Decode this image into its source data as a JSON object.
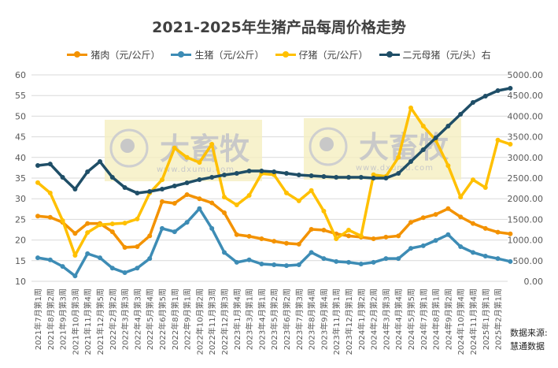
{
  "chart_data": {
    "type": "line",
    "title": "2021-2025年生猪产品每周价格走势",
    "ylim_left": [
      10,
      60
    ],
    "yticks_left": [
      "10",
      "15",
      "20",
      "25",
      "30",
      "35",
      "40",
      "45",
      "50",
      "55",
      "60"
    ],
    "ylim_right": [
      0,
      5000
    ],
    "yticks_right": [
      "0.00",
      "500.00",
      "1000.00",
      "1500.00",
      "2000.00",
      "2500.00",
      "3000.00",
      "3500.00",
      "4000.00",
      "4500.00",
      "5000.00"
    ],
    "grid": true,
    "legend_position": "top",
    "categories": [
      "2021年7月第1周",
      "2021年8月第2周",
      "2021年9月第3周",
      "2021年10月第3周",
      "2021年11月第4周",
      "2021年12月第5周",
      "2022年2月第2周",
      "2022年3月第3周",
      "2022年4月第3周",
      "2022年5月第4周",
      "2022年6月第5周",
      "2022年8月第1周",
      "2022年9月第1周",
      "2022年10月第2周",
      "2022年11月第3周",
      "2022年12月第3周",
      "2023年1月第4周",
      "2023年3月第1周",
      "2023年4月第1周",
      "2023年5月第2周",
      "2023年6月第2周",
      "2023年7月第3周",
      "2023年8月第4周",
      "2023年9月第4周",
      "2023年11月第1周",
      "2023年12月第1周",
      "2024年1月第2周",
      "2024年2月第2周",
      "2024年3月第3周",
      "2024年4月第4周",
      "2024年5月第5周",
      "2024年7月第1周",
      "2024年8月第1周",
      "2024年9月第2周",
      "2024年10月第4周",
      "2024年11月第4周",
      "2025年1月第1周",
      "2025年2月第1周",
      ""
    ],
    "series": [
      {
        "name": "猪肉（元/公斤）",
        "axis": "left",
        "color": "#F39200",
        "values": [
          25.8,
          25.5,
          24.3,
          21.6,
          24,
          24,
          22,
          18.2,
          18.4,
          21,
          29.3,
          28.9,
          31,
          30,
          29,
          26.6,
          21.3,
          20.9,
          20.3,
          19.7,
          19.2,
          19,
          22.6,
          22.4,
          21.5,
          21,
          20.7,
          20.3,
          20.7,
          21,
          24.3,
          25.4,
          26.2,
          27.6,
          25.6,
          24,
          22.8,
          21.9,
          21.5
        ]
      },
      {
        "name": "生猪（元/公斤）",
        "axis": "left",
        "color": "#3D8CB5",
        "values": [
          15.7,
          15.2,
          13.6,
          11.3,
          16.7,
          15.7,
          13.2,
          12.1,
          13.2,
          15.5,
          22.8,
          22,
          24.3,
          27.6,
          22.8,
          17,
          14.6,
          15.2,
          14.2,
          14,
          13.8,
          14,
          17,
          15.5,
          14.8,
          14.6,
          14.2,
          14.6,
          15.5,
          15.5,
          18,
          18.6,
          19.9,
          21.3,
          18.4,
          17,
          16.1,
          15.5,
          14.8
        ]
      },
      {
        "name": "仔猪（元/公斤）",
        "axis": "left",
        "color": "#FFC000",
        "values": [
          33.9,
          31.4,
          24.7,
          16.3,
          21.8,
          23.7,
          23.9,
          24.1,
          25.1,
          31.4,
          34.6,
          42.3,
          40,
          38.8,
          43.2,
          30.4,
          28.5,
          30.8,
          36.1,
          35.8,
          31.4,
          29.5,
          32,
          27,
          20.3,
          22.4,
          21,
          35.8,
          35.4,
          40,
          52,
          47.6,
          44.2,
          38,
          30.4,
          34.6,
          32.7,
          44.2,
          43.2
        ]
      },
      {
        "name": "二元母猪（元/头）右",
        "axis": "right",
        "color": "#1F4E67",
        "values": [
          2805,
          2840,
          2519,
          2233,
          2653,
          2900,
          2519,
          2271,
          2137,
          2176,
          2233,
          2309,
          2385,
          2462,
          2519,
          2576,
          2614,
          2672,
          2672,
          2653,
          2614,
          2576,
          2557,
          2538,
          2519,
          2519,
          2519,
          2500,
          2500,
          2614,
          2900,
          3187,
          3473,
          3760,
          4046,
          4332,
          4485,
          4618,
          4676
        ]
      }
    ]
  },
  "watermark": {
    "logo_text": "大畜牧",
    "url_text": "www.dxumu.com"
  },
  "source": {
    "line1": "数据来源:",
    "line2": "慧通数据"
  }
}
